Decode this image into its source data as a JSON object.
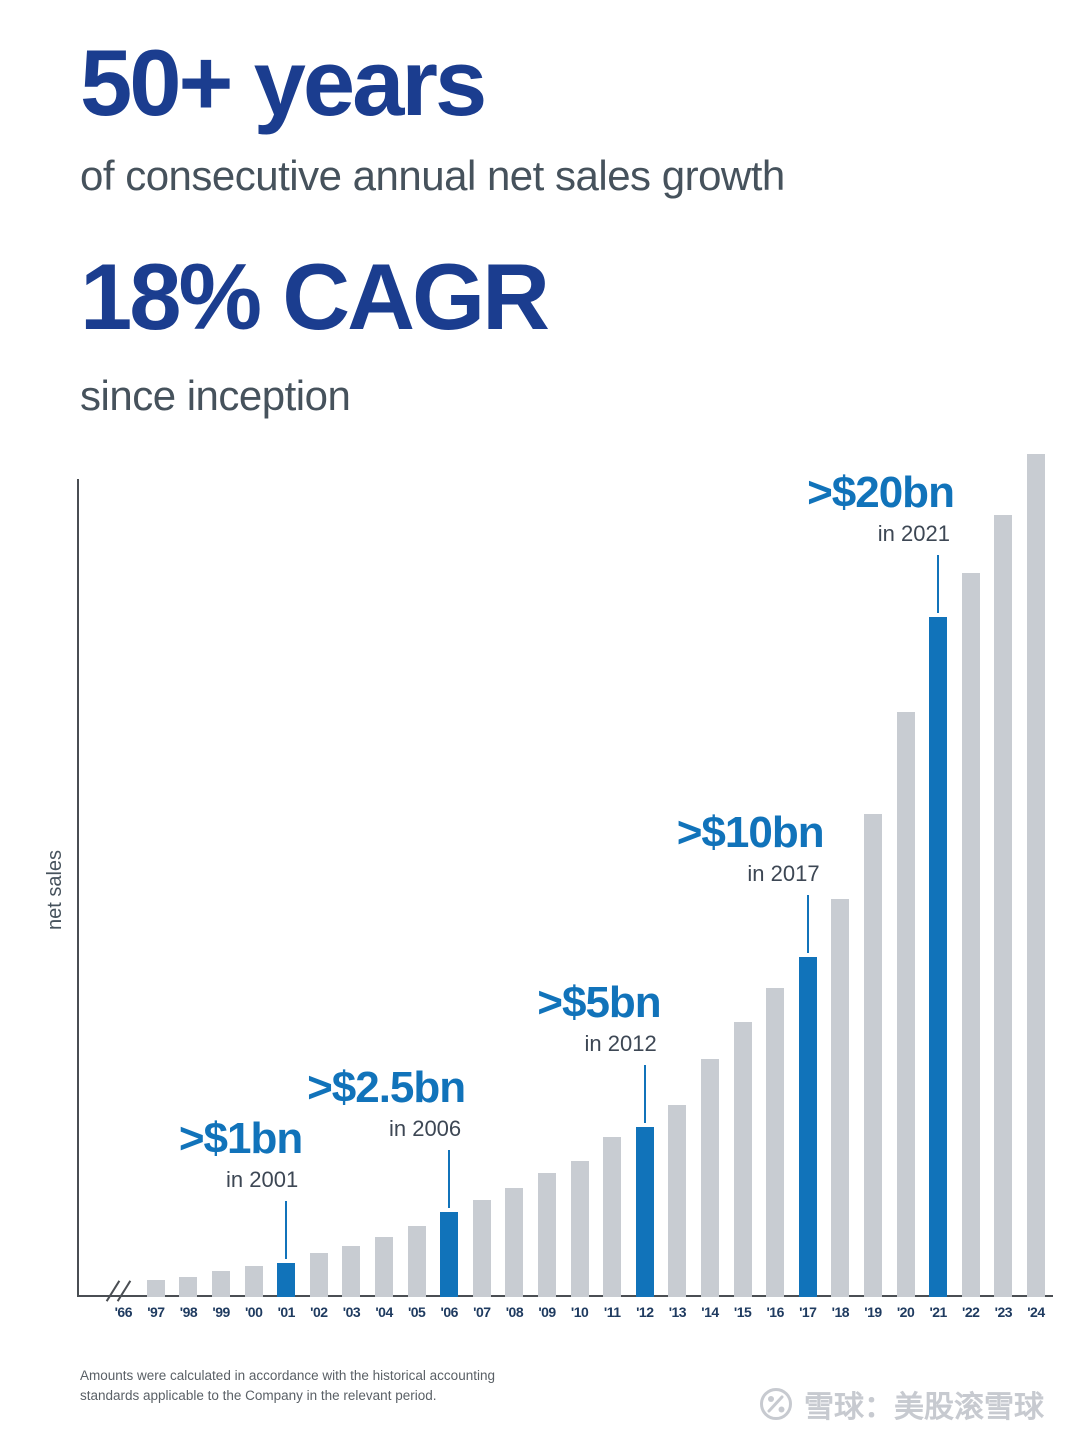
{
  "header": {
    "title": "50+ years",
    "subtitle": "of consecutive annual net sales growth",
    "title2": "18% CAGR",
    "subtitle2": "since inception"
  },
  "footnote": "Amounts were calculated in accordance with the historical accounting standards applicable to the Company in the relevant period.",
  "watermark": "雪球：美股滚雪球",
  "chart_data": {
    "type": "bar",
    "title": "50+ years of consecutive annual net sales growth — 18% CAGR since inception",
    "xlabel": "",
    "ylabel": "net sales",
    "unit": "$bn",
    "ylim": [
      0,
      25
    ],
    "grid": false,
    "axis_break_after": "'66",
    "categories": [
      "'66",
      "'97",
      "'98",
      "'99",
      "'00",
      "'01",
      "'02",
      "'03",
      "'04",
      "'05",
      "'06",
      "'07",
      "'08",
      "'09",
      "'10",
      "'11",
      "'12",
      "'13",
      "'14",
      "'15",
      "'16",
      "'17",
      "'18",
      "'19",
      "'20",
      "'21",
      "'22",
      "'23",
      "'24"
    ],
    "values": [
      0,
      0.5,
      0.6,
      0.75,
      0.9,
      1.0,
      1.3,
      1.5,
      1.75,
      2.1,
      2.5,
      2.85,
      3.2,
      3.65,
      4.0,
      4.7,
      5.0,
      5.65,
      7.0,
      8.1,
      9.1,
      10.0,
      11.7,
      14.2,
      17.2,
      20.0,
      21.3,
      23.0,
      24.8
    ],
    "highlight_categories": [
      "'01",
      "'06",
      "'12",
      "'17",
      "'21"
    ],
    "annotations": [
      {
        "label": ">$1bn",
        "sub": "in 2001",
        "category": "'01"
      },
      {
        "label": ">$2.5bn",
        "sub": "in 2006",
        "category": "'06"
      },
      {
        "label": ">$5bn",
        "sub": "in 2012",
        "category": "'12"
      },
      {
        "label": ">$10bn",
        "sub": "in 2017",
        "category": "'17"
      },
      {
        "label": ">$20bn",
        "sub": "in 2021",
        "category": "'21"
      }
    ],
    "legend": null,
    "colors": {
      "bar": "#c8ccd2",
      "highlight": "#1173ba",
      "heading": "#1b3d8f",
      "subtitle": "#46525c",
      "axis": "#4a4e53",
      "tick_label": "#1f3b60",
      "annotation_sub": "#3d4754"
    }
  }
}
